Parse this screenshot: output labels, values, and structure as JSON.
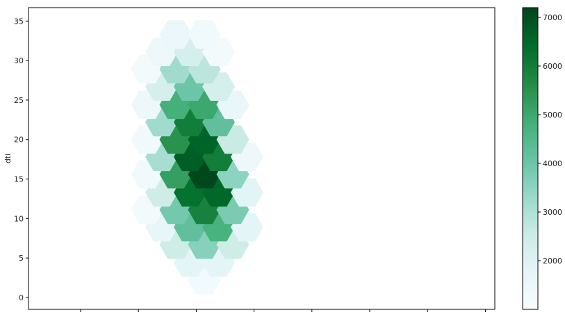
{
  "chart_data": {
    "type": "hexbin",
    "title": "",
    "xlabel": "",
    "ylabel": "dti",
    "ylim": [
      -1.5,
      36.7
    ],
    "y_ticks": [
      0,
      5,
      10,
      15,
      20,
      25,
      30,
      35
    ],
    "x_tick_count": 8,
    "x_tick_labels_visible": false,
    "colormap": "BuGn",
    "colorbar": {
      "min": 1000,
      "max": 7200,
      "ticks": [
        2000,
        3000,
        4000,
        5000,
        6000,
        7000
      ]
    },
    "bins": [
      {
        "col": 0,
        "y": 2.2,
        "count": 1250
      },
      {
        "col": -1,
        "y": 4.4,
        "count": 1800
      },
      {
        "col": 1,
        "y": 4.4,
        "count": 1800
      },
      {
        "col": -2,
        "y": 6.7,
        "count": 2500
      },
      {
        "col": 0,
        "y": 6.7,
        "count": 3600
      },
      {
        "col": 2,
        "y": 6.7,
        "count": 2500
      },
      {
        "col": -3,
        "y": 8.9,
        "count": 1700
      },
      {
        "col": -1,
        "y": 8.9,
        "count": 4200
      },
      {
        "col": 1,
        "y": 8.9,
        "count": 4700
      },
      {
        "col": 3,
        "y": 8.9,
        "count": 1800
      },
      {
        "col": -4,
        "y": 11.1,
        "count": 1200
      },
      {
        "col": -2,
        "y": 11.1,
        "count": 3900
      },
      {
        "col": 0,
        "y": 11.1,
        "count": 5900
      },
      {
        "col": 2,
        "y": 11.1,
        "count": 3800
      },
      {
        "col": -3,
        "y": 13.3,
        "count": 2500
      },
      {
        "col": -1,
        "y": 13.3,
        "count": 6300
      },
      {
        "col": 1,
        "y": 13.3,
        "count": 6500
      },
      {
        "col": 3,
        "y": 13.3,
        "count": 1900
      },
      {
        "col": -4,
        "y": 15.6,
        "count": 1300
      },
      {
        "col": -2,
        "y": 15.6,
        "count": 5200
      },
      {
        "col": 0,
        "y": 15.6,
        "count": 7150
      },
      {
        "col": 2,
        "y": 15.6,
        "count": 3500
      },
      {
        "col": -3,
        "y": 17.8,
        "count": 3100
      },
      {
        "col": -1,
        "y": 17.8,
        "count": 6700
      },
      {
        "col": 1,
        "y": 17.8,
        "count": 6000
      },
      {
        "col": 3,
        "y": 17.8,
        "count": 1400
      },
      {
        "col": -4,
        "y": 20.0,
        "count": 1300
      },
      {
        "col": -2,
        "y": 20.0,
        "count": 5500
      },
      {
        "col": 0,
        "y": 20.0,
        "count": 6600
      },
      {
        "col": 2,
        "y": 20.0,
        "count": 2600
      },
      {
        "col": -3,
        "y": 22.2,
        "count": 3200
      },
      {
        "col": -1,
        "y": 22.2,
        "count": 6000
      },
      {
        "col": 1,
        "y": 22.2,
        "count": 4200
      },
      {
        "col": -4,
        "y": 24.4,
        "count": 1400
      },
      {
        "col": -2,
        "y": 24.4,
        "count": 4800
      },
      {
        "col": 0,
        "y": 24.4,
        "count": 5000
      },
      {
        "col": 2,
        "y": 24.4,
        "count": 1600
      },
      {
        "col": -3,
        "y": 26.7,
        "count": 2300
      },
      {
        "col": -1,
        "y": 26.7,
        "count": 4000
      },
      {
        "col": 1,
        "y": 26.7,
        "count": 2300
      },
      {
        "col": -4,
        "y": 28.9,
        "count": 1200
      },
      {
        "col": -2,
        "y": 28.9,
        "count": 3200
      },
      {
        "col": 0,
        "y": 28.9,
        "count": 2800
      },
      {
        "col": -3,
        "y": 31.1,
        "count": 1400
      },
      {
        "col": -1,
        "y": 31.1,
        "count": 2300
      },
      {
        "col": 1,
        "y": 31.1,
        "count": 1200
      },
      {
        "col": -2,
        "y": 33.3,
        "count": 1500
      },
      {
        "col": 0,
        "y": 33.3,
        "count": 1300
      }
    ]
  }
}
